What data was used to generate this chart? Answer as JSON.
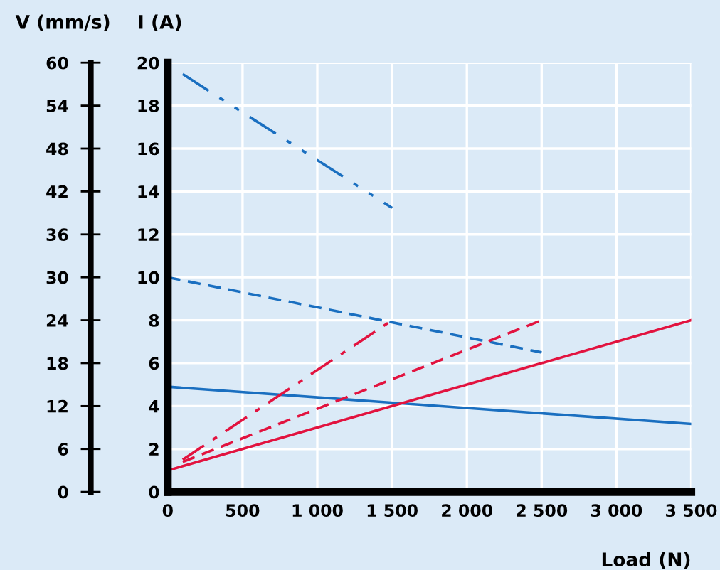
{
  "chart_data": {
    "type": "line",
    "xlabel": "Load (N)",
    "ylabel": "V (mm/s)",
    "y2label": "I (A)",
    "xlim": [
      0,
      3500
    ],
    "xticks": [
      0,
      500,
      {
        "value": 1000,
        "label": "1 000"
      },
      {
        "value": 1500,
        "label": "1 500"
      },
      {
        "value": 2000,
        "label": "2 000"
      },
      {
        "value": 2500,
        "label": "2 500"
      },
      {
        "value": 3000,
        "label": "3 000"
      },
      {
        "value": 3500,
        "label": "3 500"
      }
    ],
    "ylim": [
      0,
      60
    ],
    "yticks": [
      0,
      6,
      12,
      18,
      24,
      30,
      36,
      42,
      48,
      54,
      60
    ],
    "y2lim": [
      0,
      20
    ],
    "y2ticks": [
      0,
      2,
      4,
      6,
      8,
      10,
      12,
      14,
      16,
      18,
      20
    ],
    "grid": true,
    "marker": "none",
    "series": [
      {
        "color": "#1a6fc0",
        "line_style": "solid",
        "x": [
          0,
          3500
        ],
        "values": [
          14.7,
          9.5
        ]
      },
      {
        "color": "#1a6fc0",
        "line_style": "dashed",
        "x": [
          0,
          2500
        ],
        "values": [
          30,
          19.5
        ]
      },
      {
        "color": "#1a6fc0",
        "line_style": "dashdotdot",
        "x": [
          100,
          1500
        ],
        "values": [
          58.4,
          39.7
        ]
      },
      {
        "color": "#e2133f",
        "line_style": "solid",
        "axis": "y2",
        "x": [
          0,
          3500
        ],
        "values": [
          1.0,
          8.0
        ]
      },
      {
        "color": "#e2133f",
        "line_style": "dashed",
        "axis": "y2",
        "x": [
          100,
          2500
        ],
        "values": [
          1.4,
          8.0
        ]
      },
      {
        "color": "#e2133f",
        "line_style": "dashdot",
        "axis": "y2",
        "x": [
          100,
          1500
        ],
        "values": [
          1.5,
          8.0
        ]
      }
    ]
  }
}
